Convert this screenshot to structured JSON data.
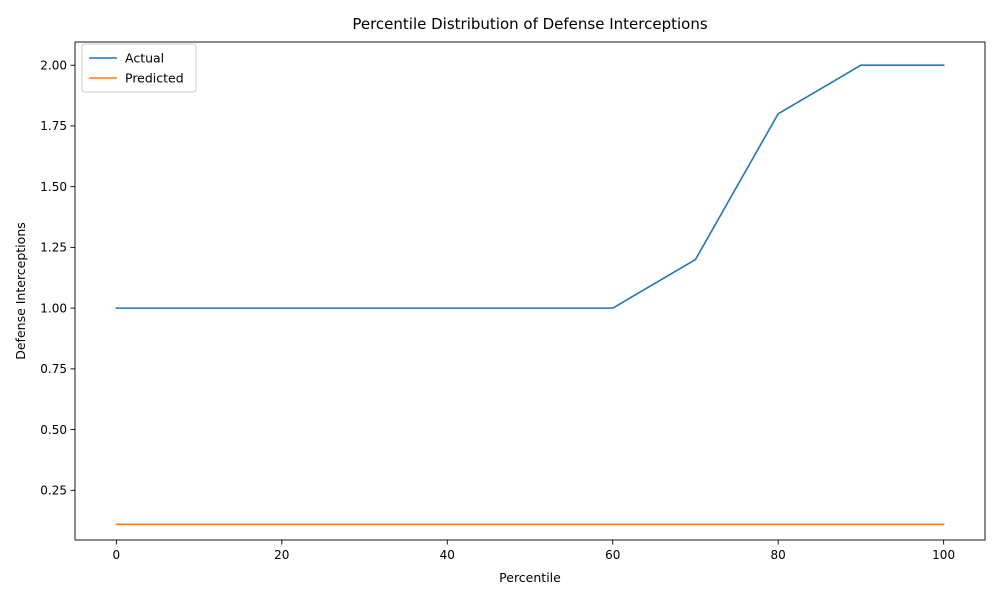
{
  "chart_data": {
    "type": "line",
    "title": "Percentile Distribution of Defense Interceptions",
    "xlabel": "Percentile",
    "ylabel": "Defense Interceptions",
    "x": [
      0,
      10,
      20,
      30,
      40,
      50,
      60,
      70,
      80,
      90,
      100
    ],
    "xlim": [
      -5,
      105
    ],
    "ylim": [
      0.0455,
      2.0955
    ],
    "xticks": [
      0,
      20,
      40,
      60,
      80,
      100
    ],
    "yticks": [
      0.25,
      0.5,
      0.75,
      1.0,
      1.25,
      1.5,
      1.75,
      2.0
    ],
    "ytick_labels": [
      "0.25",
      "0.50",
      "0.75",
      "1.00",
      "1.25",
      "1.50",
      "1.75",
      "2.00"
    ],
    "grid": false,
    "legend_position": "top-left",
    "series": [
      {
        "name": "Actual",
        "color": "#1f77b4",
        "values": [
          1.0,
          1.0,
          1.0,
          1.0,
          1.0,
          1.0,
          1.0,
          1.2,
          1.8,
          2.0,
          2.0
        ]
      },
      {
        "name": "Predicted",
        "color": "#ff7f0e",
        "values": [
          0.11,
          0.11,
          0.11,
          0.11,
          0.11,
          0.11,
          0.11,
          0.11,
          0.11,
          0.11,
          0.11
        ]
      }
    ]
  }
}
